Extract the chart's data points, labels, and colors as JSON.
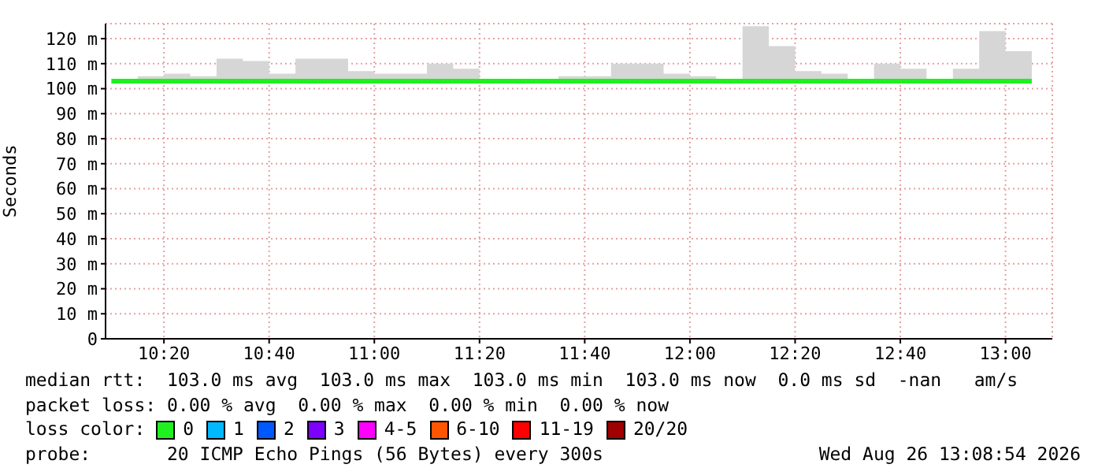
{
  "chart_data": {
    "type": "line",
    "ylabel": "Seconds",
    "legend_title": "loss color:",
    "x": [
      10.1667,
      10.25,
      10.3333,
      10.4167,
      10.5,
      10.5833,
      10.6667,
      10.75,
      10.8333,
      10.9167,
      11,
      11.0833,
      11.1667,
      11.25,
      11.3333,
      11.4167,
      11.5,
      11.5833,
      11.6667,
      11.75,
      11.8333,
      11.9167,
      12,
      12.0833,
      12.1667,
      12.25,
      12.3333,
      12.4167,
      12.5,
      12.5833,
      12.6667,
      12.75,
      12.8333,
      12.9167,
      13,
      13.0833
    ],
    "series": [
      {
        "name": "0",
        "color": "#20f020",
        "values": [
          103,
          103,
          103,
          103,
          103,
          103,
          103,
          103,
          103,
          103,
          103,
          103,
          103,
          103,
          103,
          103,
          103,
          103,
          103,
          103,
          103,
          103,
          103,
          103,
          103,
          103,
          103,
          103,
          103,
          103,
          103,
          103,
          103,
          103,
          103,
          103
        ],
        "lower": [
          103,
          103,
          103,
          103,
          103,
          103,
          103,
          103,
          103,
          103,
          103,
          103,
          103,
          103,
          103,
          103,
          103,
          103,
          103,
          103,
          103,
          103,
          103,
          103,
          103,
          103,
          103,
          103,
          103,
          103,
          103,
          103,
          103,
          103,
          103,
          103
        ],
        "upper": [
          103,
          105,
          106,
          105,
          112,
          111,
          106,
          112,
          112,
          107,
          106,
          106,
          110,
          108,
          103,
          103,
          103,
          105,
          105,
          110,
          110,
          106,
          105,
          103,
          125,
          117,
          107,
          106,
          103,
          110,
          108,
          103,
          108,
          123,
          115,
          115
        ]
      },
      {
        "name": "1",
        "color": "#00b8ff",
        "values": [
          null,
          null,
          null,
          null,
          null,
          null,
          null,
          null,
          null,
          null,
          null,
          null,
          null,
          null,
          null,
          null,
          null,
          null,
          null,
          null,
          null,
          null,
          null,
          null,
          null,
          null,
          null,
          null,
          null,
          null,
          null,
          null,
          null,
          null,
          null,
          null
        ]
      },
      {
        "name": "2",
        "color": "#0059ff",
        "values": [
          null,
          null,
          null,
          null,
          null,
          null,
          null,
          null,
          null,
          null,
          null,
          null,
          null,
          null,
          null,
          null,
          null,
          null,
          null,
          null,
          null,
          null,
          null,
          null,
          null,
          null,
          null,
          null,
          null,
          null,
          null,
          null,
          null,
          null,
          null,
          null
        ]
      },
      {
        "name": "3",
        "color": "#7e00ff",
        "values": [
          null,
          null,
          null,
          null,
          null,
          null,
          null,
          null,
          null,
          null,
          null,
          null,
          null,
          null,
          null,
          null,
          null,
          null,
          null,
          null,
          null,
          null,
          null,
          null,
          null,
          null,
          null,
          null,
          null,
          null,
          null,
          null,
          null,
          null,
          null,
          null
        ]
      },
      {
        "name": "4-5",
        "color": "#ff00ff",
        "values": [
          null,
          null,
          null,
          null,
          null,
          null,
          null,
          null,
          null,
          null,
          null,
          null,
          null,
          null,
          null,
          null,
          null,
          null,
          null,
          null,
          null,
          null,
          null,
          null,
          null,
          null,
          null,
          null,
          null,
          null,
          null,
          null,
          null,
          null,
          null,
          null
        ]
      },
      {
        "name": "6-10",
        "color": "#ff5500",
        "values": [
          null,
          null,
          null,
          null,
          null,
          null,
          null,
          null,
          null,
          null,
          null,
          null,
          null,
          null,
          null,
          null,
          null,
          null,
          null,
          null,
          null,
          null,
          null,
          null,
          null,
          null,
          null,
          null,
          null,
          null,
          null,
          null,
          null,
          null,
          null,
          null
        ]
      },
      {
        "name": "11-19",
        "color": "#ff0000",
        "values": [
          null,
          null,
          null,
          null,
          null,
          null,
          null,
          null,
          null,
          null,
          null,
          null,
          null,
          null,
          null,
          null,
          null,
          null,
          null,
          null,
          null,
          null,
          null,
          null,
          null,
          null,
          null,
          null,
          null,
          null,
          null,
          null,
          null,
          null,
          null,
          null
        ]
      },
      {
        "name": "20/20",
        "color": "#a10000",
        "values": [
          null,
          null,
          null,
          null,
          null,
          null,
          null,
          null,
          null,
          null,
          null,
          null,
          null,
          null,
          null,
          null,
          null,
          null,
          null,
          null,
          null,
          null,
          null,
          null,
          null,
          null,
          null,
          null,
          null,
          null,
          null,
          null,
          null,
          null,
          null,
          null
        ]
      }
    ],
    "xlim": [
      10.1483,
      13.1483
    ],
    "xticks": [
      {
        "value": 10.3333,
        "label": "10:20"
      },
      {
        "value": 10.6667,
        "label": "10:40"
      },
      {
        "value": 11,
        "label": "11:00"
      },
      {
        "value": 11.3333,
        "label": "11:20"
      },
      {
        "value": 11.6667,
        "label": "11:40"
      },
      {
        "value": 12,
        "label": "12:00"
      },
      {
        "value": 12.3333,
        "label": "12:20"
      },
      {
        "value": 12.6667,
        "label": "12:40"
      },
      {
        "value": 13,
        "label": "13:00"
      }
    ],
    "ylim": [
      0,
      126
    ],
    "yticks": [
      0,
      {
        "value": 10,
        "label": "10 m"
      },
      {
        "value": 20,
        "label": "20 m"
      },
      {
        "value": 30,
        "label": "30 m"
      },
      {
        "value": 40,
        "label": "40 m"
      },
      {
        "value": 50,
        "label": "50 m"
      },
      {
        "value": 60,
        "label": "60 m"
      },
      {
        "value": 70,
        "label": "70 m"
      },
      {
        "value": 80,
        "label": "80 m"
      },
      {
        "value": 90,
        "label": "90 m"
      },
      {
        "value": 100,
        "label": "100 m"
      },
      {
        "value": 110,
        "label": "110 m"
      },
      {
        "value": 120,
        "label": "120 m"
      }
    ],
    "grid": true,
    "legend": "bottom",
    "line_style": "solid",
    "marker": "none",
    "annotations": [
      "median rtt:  103.0 ms avg  103.0 ms max  103.0 ms min  103.0 ms now  0.0 ms sd  -nan   am/s",
      "packet loss: 0.00 % avg  0.00 % max  0.00 % min  0.00 % now",
      "probe:       20 ICMP Echo Pings (56 Bytes) every 300s",
      "Wed Aug 26 13:08:54 2026"
    ]
  }
}
